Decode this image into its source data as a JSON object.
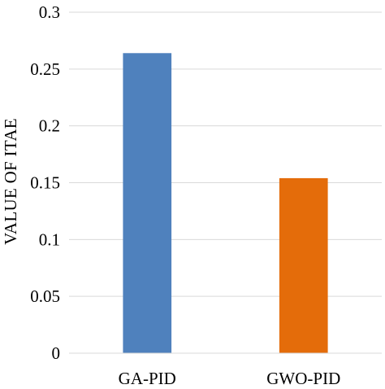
{
  "chart_data": {
    "type": "bar",
    "title": "",
    "xlabel": "",
    "ylabel": "VALUE OF ITAE",
    "ylim": [
      0,
      0.3
    ],
    "y_ticks": [
      "0",
      "0.05",
      "0.1",
      "0.15",
      "0.2",
      "0.25",
      "0.3"
    ],
    "y_tick_values": [
      0,
      0.05,
      0.1,
      0.15,
      0.2,
      0.25,
      0.3
    ],
    "categories": [
      "GA-PID",
      "GWO-PID"
    ],
    "values": [
      0.264,
      0.154
    ],
    "bar_colors": [
      "#4F81BD",
      "#E46C0A"
    ],
    "grid": true,
    "gridline_color": "#D9D9D9",
    "legend": "none"
  }
}
